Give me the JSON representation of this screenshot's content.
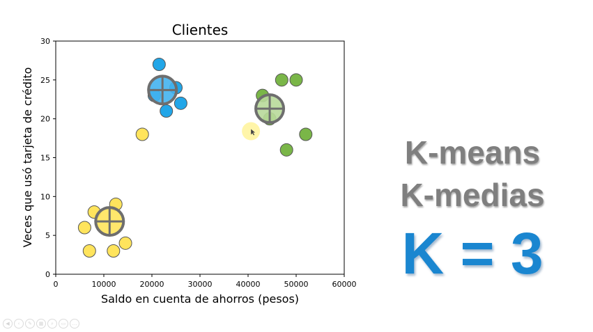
{
  "chart_data": {
    "type": "scatter",
    "title": "Clientes",
    "xlabel": "Saldo en cuenta de ahorros (pesos)",
    "ylabel": "Veces que usó tarjeta de crédito",
    "xlim": [
      0,
      60000
    ],
    "ylim": [
      0,
      30
    ],
    "xticks": [
      0,
      10000,
      20000,
      30000,
      40000,
      50000,
      60000
    ],
    "yticks": [
      0,
      5,
      10,
      15,
      20,
      25,
      30
    ],
    "grid": false,
    "series": [
      {
        "color": "#ffe45c",
        "points": [
          [
            6000,
            6
          ],
          [
            7000,
            3
          ],
          [
            8000,
            8
          ],
          [
            12000,
            3
          ],
          [
            12500,
            9
          ],
          [
            14500,
            4
          ],
          [
            18000,
            18
          ]
        ]
      },
      {
        "color": "#22a6e8",
        "points": [
          [
            20500,
            23
          ],
          [
            21500,
            27
          ],
          [
            23000,
            21
          ],
          [
            25000,
            24
          ],
          [
            26000,
            22
          ]
        ]
      },
      {
        "color": "#7ab648",
        "points": [
          [
            43000,
            23
          ],
          [
            44500,
            20
          ],
          [
            47000,
            25
          ],
          [
            48000,
            16
          ],
          [
            50000,
            25
          ],
          [
            52000,
            18
          ]
        ]
      }
    ],
    "centroids": [
      {
        "x": 11200,
        "y": 6.8,
        "color": "#ffe45c"
      },
      {
        "x": 22200,
        "y": 23.7,
        "color": "#44b3ee"
      },
      {
        "x": 44500,
        "y": 21.3,
        "color": "#b8d99a"
      }
    ],
    "highlight_point": {
      "x": 40600,
      "y": 18.4,
      "color": "#fff39a"
    }
  },
  "side_text": {
    "line1": "K-means",
    "line2": "K-medias",
    "line3": "K = 3"
  },
  "toolbar": {
    "icons": [
      "rewind-icon",
      "back-icon",
      "pen-icon",
      "grid-icon",
      "zoom-icon",
      "subtitle-icon",
      "more-icon"
    ]
  }
}
